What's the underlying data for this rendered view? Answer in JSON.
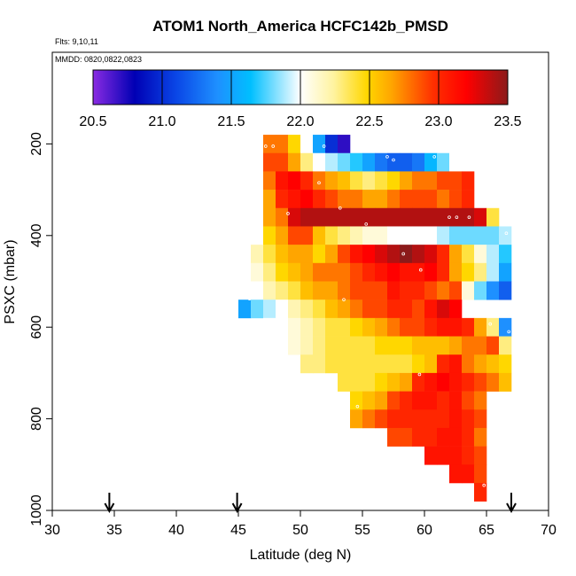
{
  "chart_data": {
    "type": "heatmap",
    "title": "ATOM1 North_America HCFC142b_PMSD",
    "flights_label": "Flts: 9,10,11",
    "dates_label": "MMDD: 0820,0822,0823",
    "xlabel": "Latitude (deg N)",
    "ylabel": "PSXC (mbar)",
    "xlim": [
      30,
      70
    ],
    "ylim": [
      1000,
      0
    ],
    "xticks": [
      30,
      35,
      40,
      45,
      50,
      55,
      60,
      65,
      70
    ],
    "yticks": [
      200,
      400,
      600,
      800,
      1000
    ],
    "colorbar": {
      "range": [
        20.5,
        23.5
      ],
      "ticks": [
        20.5,
        21.0,
        21.5,
        22.0,
        22.5,
        23.0,
        23.5
      ],
      "tick_labels": [
        "20.5",
        "21.0",
        "21.5",
        "22.0",
        "22.5",
        "23.0",
        "23.5"
      ],
      "colors": [
        "#8a2be2",
        "#0000b4",
        "#1e90ff",
        "#00bfff",
        "#ffffff",
        "#fff3a0",
        "#ffd700",
        "#ffa500",
        "#ff3000",
        "#ff0000",
        "#8b1a1a"
      ]
    },
    "arrows_latitude": [
      34.6,
      44.9,
      67.0
    ],
    "cell_width_deg": 1.0,
    "cell_height_mbar": 40,
    "rows": [
      {
        "p": 200,
        "x0": 47,
        "values": [
          22.8,
          22.8,
          22.5,
          22.0,
          21.5,
          21.0,
          20.7
        ]
      },
      {
        "p": 240,
        "x0": 47,
        "values": [
          22.9,
          22.9,
          22.7,
          22.3,
          22.0,
          21.9,
          21.8,
          21.7,
          21.5,
          21.3,
          21.2,
          21.2,
          21.3,
          21.6,
          21.8,
          22.0
        ]
      },
      {
        "p": 280,
        "x0": 47,
        "values": [
          22.8,
          23.1,
          23.2,
          23.0,
          22.8,
          22.7,
          22.6,
          22.4,
          22.3,
          22.4,
          22.5,
          22.7,
          22.8,
          22.8,
          22.9,
          22.9,
          23.0
        ]
      },
      {
        "p": 320,
        "x0": 47,
        "values": [
          22.7,
          23.0,
          23.1,
          23.2,
          23.0,
          22.9,
          22.8,
          22.8,
          22.7,
          22.7,
          22.8,
          22.9,
          22.9,
          22.9,
          22.8,
          22.9,
          23.0
        ]
      },
      {
        "p": 360,
        "x0": 47,
        "values": [
          22.7,
          22.8,
          23.3,
          23.4,
          23.4,
          23.4,
          23.4,
          23.4,
          23.4,
          23.4,
          23.4,
          23.4,
          23.4,
          23.4,
          23.4,
          23.4,
          23.4,
          23.3,
          22.4
        ]
      },
      {
        "p": 400,
        "x0": 47,
        "values": [
          22.5,
          22.7,
          22.9,
          22.9,
          22.6,
          22.4,
          22.3,
          22.2,
          22.1,
          22.1,
          22.0,
          22.0,
          22.0,
          22.0,
          21.9,
          21.8,
          21.8,
          21.8,
          21.8,
          21.9
        ]
      },
      {
        "p": 440,
        "x0": 46,
        "values": [
          22.2,
          22.4,
          22.6,
          22.7,
          22.7,
          22.5,
          22.7,
          22.9,
          23.1,
          23.2,
          23.3,
          23.4,
          23.5,
          23.4,
          23.3,
          23.0,
          22.7,
          22.4,
          22.1,
          21.9,
          21.7
        ]
      },
      {
        "p": 480,
        "x0": 46,
        "values": [
          22.1,
          22.3,
          22.5,
          22.6,
          22.7,
          22.8,
          22.8,
          22.8,
          22.9,
          23.0,
          23.1,
          23.2,
          23.1,
          23.1,
          23.2,
          23.0,
          22.7,
          22.5,
          22.3,
          21.9,
          21.5
        ]
      },
      {
        "p": 520,
        "x0": 46,
        "values": [
          22.0,
          22.2,
          22.3,
          22.4,
          22.6,
          22.7,
          22.7,
          22.8,
          22.9,
          22.9,
          22.9,
          23.1,
          23.0,
          23.0,
          22.9,
          22.8,
          22.9,
          22.1,
          21.8,
          21.4,
          21.2
        ]
      },
      {
        "p": 560,
        "x0": 45,
        "values": [
          21.5,
          21.8,
          21.9,
          22.0,
          22.2,
          22.3,
          22.4,
          22.6,
          22.7,
          22.8,
          22.9,
          22.9,
          23.0,
          23.0,
          22.9,
          23.1,
          23.3,
          23.2
        ]
      },
      {
        "p": 600,
        "x0": 47,
        "values": [
          22.0,
          22.0,
          22.1,
          22.2,
          22.3,
          22.4,
          22.4,
          22.5,
          22.6,
          22.7,
          22.8,
          22.9,
          22.9,
          23.0,
          23.1,
          23.1,
          23.0,
          22.7,
          22.3,
          21.4
        ]
      },
      {
        "p": 640,
        "x0": 49,
        "values": [
          22.1,
          22.2,
          22.3,
          22.4,
          22.4,
          22.4,
          22.4,
          22.5,
          22.5,
          22.5,
          22.6,
          22.6,
          22.6,
          22.7,
          22.8,
          22.8,
          22.9,
          22.3
        ]
      },
      {
        "p": 680,
        "x0": 50,
        "values": [
          22.3,
          22.3,
          22.4,
          22.4,
          22.4,
          22.4,
          22.4,
          22.4,
          22.4,
          22.5,
          22.6,
          23.0,
          23.1,
          22.8,
          22.7,
          22.6,
          22.5
        ]
      },
      {
        "p": 720,
        "x0": 53,
        "values": [
          22.4,
          22.4,
          22.4,
          22.5,
          22.6,
          22.7,
          23.0,
          23.1,
          23.2,
          23.1,
          23.0,
          22.9,
          22.8,
          22.6
        ]
      },
      {
        "p": 760,
        "x0": 54,
        "values": [
          22.5,
          22.6,
          22.7,
          22.9,
          23.0,
          23.1,
          23.1,
          23.0,
          23.1,
          22.9,
          22.8
        ]
      },
      {
        "p": 800,
        "x0": 54,
        "values": [
          22.7,
          22.8,
          22.9,
          23.0,
          23.0,
          23.0,
          23.0,
          23.0,
          23.1,
          23.0,
          22.9
        ]
      },
      {
        "p": 840,
        "x0": 57,
        "values": [
          22.9,
          22.9,
          23.0,
          23.0,
          23.1,
          23.1,
          23.0,
          22.8
        ]
      },
      {
        "p": 880,
        "x0": 60,
        "values": [
          23.1,
          23.1,
          23.1,
          23.0,
          22.9
        ]
      },
      {
        "p": 920,
        "x0": 62,
        "values": [
          23.1,
          23.1,
          22.9
        ]
      },
      {
        "p": 960,
        "x0": 64,
        "values": [
          23.0
        ]
      }
    ],
    "sample_points": [
      {
        "lat": 47.2,
        "p": 205
      },
      {
        "lat": 47.8,
        "p": 205
      },
      {
        "lat": 51.9,
        "p": 205
      },
      {
        "lat": 57.0,
        "p": 228
      },
      {
        "lat": 57.5,
        "p": 235
      },
      {
        "lat": 60.8,
        "p": 228
      },
      {
        "lat": 51.5,
        "p": 285
      },
      {
        "lat": 49.0,
        "p": 352
      },
      {
        "lat": 53.2,
        "p": 340
      },
      {
        "lat": 55.3,
        "p": 375
      },
      {
        "lat": 62.0,
        "p": 360
      },
      {
        "lat": 62.6,
        "p": 360
      },
      {
        "lat": 63.6,
        "p": 360
      },
      {
        "lat": 66.6,
        "p": 395
      },
      {
        "lat": 58.3,
        "p": 440
      },
      {
        "lat": 59.7,
        "p": 475
      },
      {
        "lat": 45.9,
        "p": 538
      },
      {
        "lat": 53.5,
        "p": 540
      },
      {
        "lat": 65.3,
        "p": 593
      },
      {
        "lat": 66.8,
        "p": 610
      },
      {
        "lat": 59.6,
        "p": 703
      },
      {
        "lat": 54.6,
        "p": 773
      },
      {
        "lat": 64.8,
        "p": 945
      }
    ]
  }
}
